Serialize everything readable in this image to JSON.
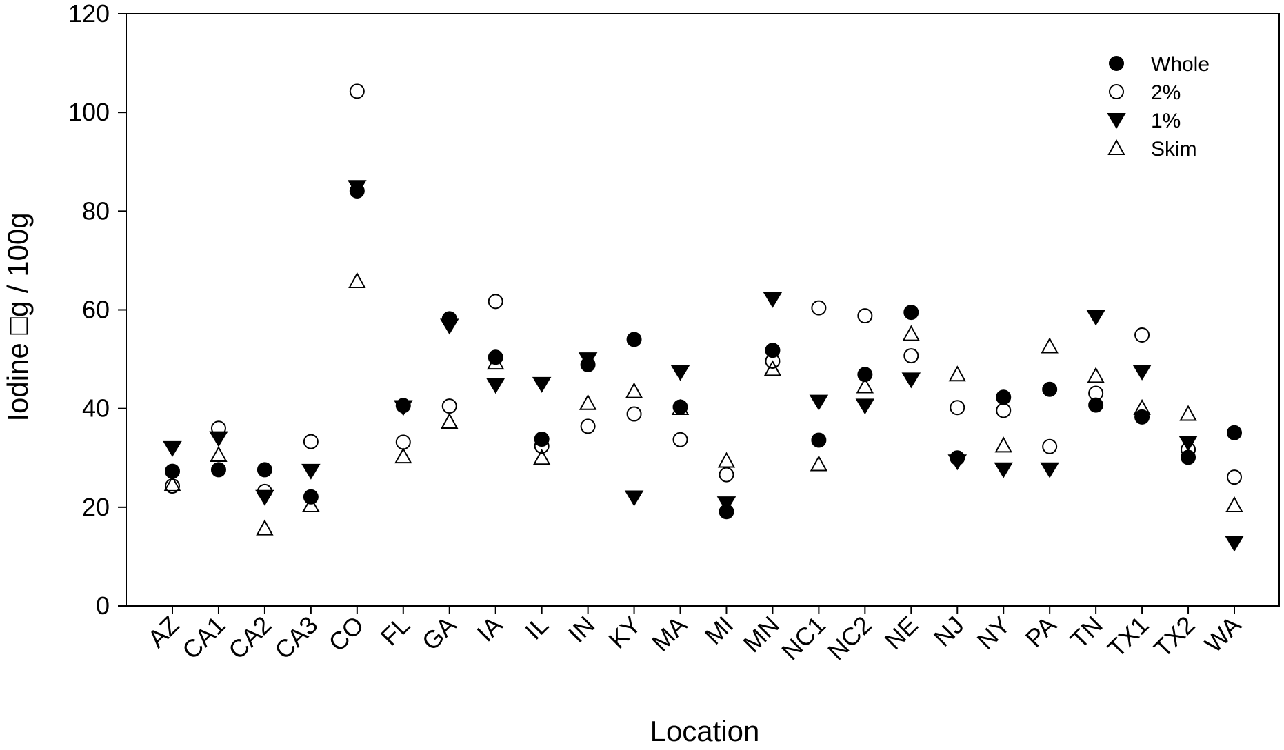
{
  "chart_data": {
    "type": "scatter",
    "title": "",
    "xlabel": "Location",
    "ylabel": "Iodine □g / 100g",
    "ylim": [
      0,
      120
    ],
    "yticks": [
      0,
      20,
      40,
      60,
      80,
      100,
      120
    ],
    "grid": false,
    "legend_position": "top-right",
    "categories": [
      "AZ",
      "CA1",
      "CA2",
      "CA3",
      "CO",
      "FL",
      "GA",
      "IA",
      "IL",
      "IN",
      "KY",
      "MA",
      "MI",
      "MN",
      "NC1",
      "NC2",
      "NE",
      "NJ",
      "NY",
      "PA",
      "TN",
      "TX1",
      "TX2",
      "WA"
    ],
    "series": [
      {
        "name": "Whole",
        "marker": "circle-filled",
        "values": [
          27.3,
          27.6,
          27.6,
          22.1,
          84.1,
          40.6,
          58.2,
          50.4,
          33.8,
          48.9,
          54.0,
          40.3,
          19.1,
          51.8,
          33.6,
          46.9,
          59.5,
          30.0,
          42.3,
          43.9,
          40.7,
          38.3,
          30.1,
          35.1
        ]
      },
      {
        "name": "2%",
        "marker": "circle-open",
        "values": [
          24.3,
          36.0,
          23.2,
          33.3,
          104.3,
          33.2,
          40.5,
          61.7,
          32.4,
          36.4,
          38.9,
          33.7,
          26.6,
          49.6,
          60.4,
          58.8,
          50.7,
          40.2,
          39.6,
          32.3,
          43.1,
          54.9,
          31.7,
          26.1
        ]
      },
      {
        "name": "1%",
        "marker": "triangle-down-filled",
        "values": [
          32.0,
          34.0,
          22.1,
          27.4,
          84.9,
          40.3,
          56.8,
          44.8,
          45.0,
          50.0,
          22.0,
          47.4,
          20.8,
          62.2,
          41.4,
          40.6,
          45.9,
          29.3,
          27.7,
          27.7,
          58.6,
          47.5,
          33.1,
          12.8
        ]
      },
      {
        "name": "Skim",
        "marker": "triangle-up-open",
        "values": [
          24.6,
          30.6,
          15.7,
          20.4,
          65.8,
          30.3,
          37.3,
          49.3,
          30.0,
          41.1,
          43.5,
          40.1,
          29.4,
          48.0,
          28.7,
          44.5,
          55.1,
          46.9,
          32.5,
          52.6,
          46.6,
          40.1,
          38.9,
          20.4
        ]
      }
    ]
  }
}
